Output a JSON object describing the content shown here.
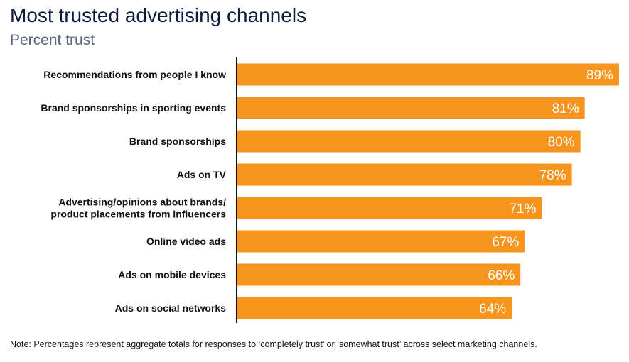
{
  "chart_data": {
    "type": "bar",
    "orientation": "horizontal",
    "title": "Most trusted advertising channels",
    "subtitle": "Percent trust",
    "categories": [
      [
        "Recommendations from people I know"
      ],
      [
        "Brand sponsorships in sporting events"
      ],
      [
        "Brand sponsorships"
      ],
      [
        "Ads on TV"
      ],
      [
        "Advertising/opinions about brands/",
        "product placements from influencers"
      ],
      [
        "Online video ads"
      ],
      [
        "Ads on mobile devices"
      ],
      [
        "Ads on social networks"
      ]
    ],
    "values": [
      89,
      81,
      80,
      78,
      71,
      67,
      66,
      64
    ],
    "value_labels": [
      "89%",
      "81%",
      "80%",
      "78%",
      "71%",
      "67%",
      "66%",
      "64%"
    ],
    "xlim": [
      0,
      89
    ],
    "grid": false,
    "bar_color": "#F7941D",
    "note": "Note: Percentages represent aggregate totals for responses to ‘completely trust’ or ‘somewhat trust’ across select marketing channels."
  }
}
